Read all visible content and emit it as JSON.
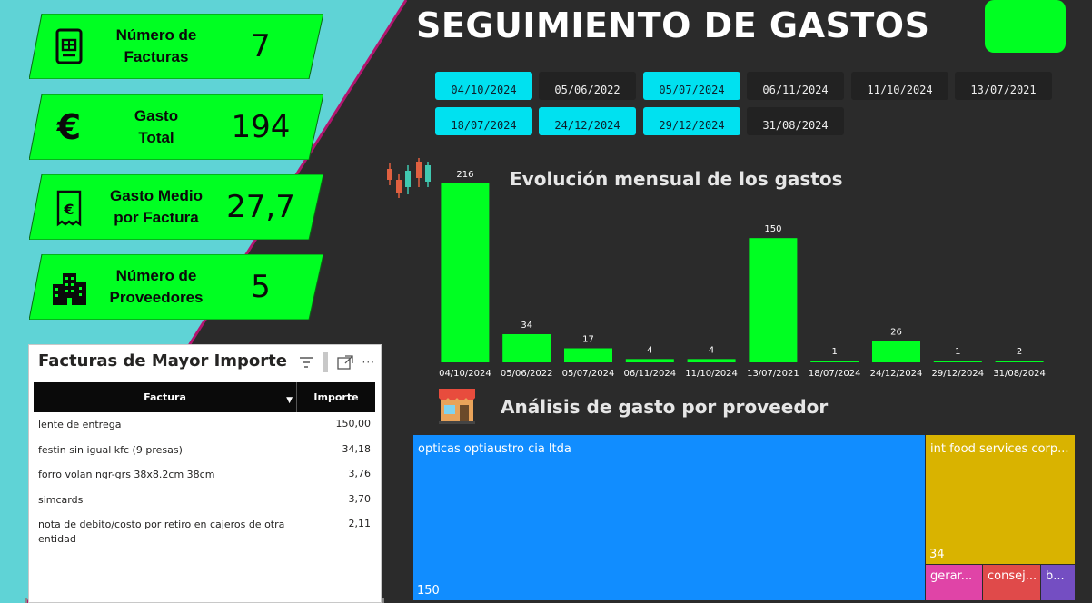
{
  "dashboard": {
    "title": "SEGUIMIENTO DE GASTOS"
  },
  "colors": {
    "accent_green": "#00ff22",
    "selected_chip": "#00e1f0",
    "background": "#2b2b2b",
    "teal_band": "#5fd3d6",
    "treemap_blue": "#118dff",
    "treemap_gold": "#d9b300",
    "treemap_pink": "#e044a7",
    "treemap_red": "#e04a4a",
    "treemap_purple": "#744ec2"
  },
  "kpis": [
    {
      "label_line1": "Número de",
      "label_line2": "Facturas",
      "value": "7",
      "icon": "invoice-icon"
    },
    {
      "label_line1": "Gasto",
      "label_line2": "Total",
      "value": "194",
      "icon": "euro-icon"
    },
    {
      "label_line1": "Gasto Medio",
      "label_line2": "por Factura",
      "value": "27,7",
      "icon": "receipt-euro-icon"
    },
    {
      "label_line1": "Número de",
      "label_line2": "Proveedores",
      "value": "5",
      "icon": "buildings-icon"
    }
  ],
  "date_filters": [
    {
      "label": "04/10/2024",
      "selected": true
    },
    {
      "label": "05/06/2022",
      "selected": false
    },
    {
      "label": "05/07/2024",
      "selected": true
    },
    {
      "label": "06/11/2024",
      "selected": false
    },
    {
      "label": "11/10/2024",
      "selected": false
    },
    {
      "label": "13/07/2021",
      "selected": false
    },
    {
      "label": "18/07/2024",
      "selected": true
    },
    {
      "label": "24/12/2024",
      "selected": true
    },
    {
      "label": "29/12/2024",
      "selected": true
    },
    {
      "label": "31/08/2024",
      "selected": false
    }
  ],
  "chart_data": {
    "type": "bar",
    "title": "Evolución mensual de los gastos",
    "categories": [
      "04/10/2024",
      "05/06/2022",
      "05/07/2024",
      "06/11/2024",
      "11/10/2024",
      "13/07/2021",
      "18/07/2024",
      "24/12/2024",
      "29/12/2024",
      "31/08/2024"
    ],
    "values": [
      216,
      34,
      17,
      4,
      4,
      150,
      1,
      26,
      1,
      2
    ],
    "xlabel": "",
    "ylabel": "",
    "ylim": [
      0,
      216
    ],
    "bar_color": "#00ff22",
    "grid": false,
    "data_labels": true
  },
  "providers": {
    "title": "Análisis de gasto por proveedor",
    "cells": [
      {
        "name": "opticas optiaustro cia ltda",
        "value": "150",
        "color": "#118dff"
      },
      {
        "name": "int food services corp...",
        "value": "34",
        "color": "#d9b300"
      },
      {
        "name": "gerar...",
        "value": "",
        "color": "#e044a7"
      },
      {
        "name": "consej...",
        "value": "",
        "color": "#e04a4a"
      },
      {
        "name": "b...",
        "value": "",
        "color": "#744ec2"
      }
    ]
  },
  "top_invoices": {
    "title": "Facturas de Mayor Importe",
    "col_factura": "Factura",
    "col_importe": "Importe",
    "rows": [
      {
        "factura": "lente de entrega",
        "importe": "150,00"
      },
      {
        "factura": "festin sin igual kfc (9 presas)",
        "importe": "34,18"
      },
      {
        "factura": "forro volan ngr-grs 38x8.2cm 38cm",
        "importe": "3,76"
      },
      {
        "factura": "simcards",
        "importe": "3,70"
      },
      {
        "factura": "nota de debito/costo por retiro en cajeros de otra entidad",
        "importe": "2,11"
      }
    ]
  }
}
